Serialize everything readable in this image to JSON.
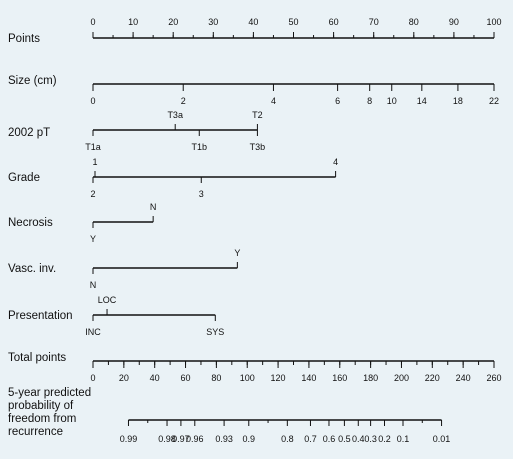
{
  "chart_data": {
    "type": "nomogram",
    "title": "",
    "scales": [
      {
        "id": "points",
        "label": "Points",
        "tick_side": "above",
        "ticks": [
          {
            "v": 0,
            "t": "0"
          },
          {
            "v": 10,
            "t": "10"
          },
          {
            "v": 20,
            "t": "20"
          },
          {
            "v": 30,
            "t": "30"
          },
          {
            "v": 40,
            "t": "40"
          },
          {
            "v": 50,
            "t": "50"
          },
          {
            "v": 60,
            "t": "60"
          },
          {
            "v": 70,
            "t": "70"
          },
          {
            "v": 80,
            "t": "80"
          },
          {
            "v": 90,
            "t": "90"
          },
          {
            "v": 100,
            "t": "100"
          }
        ],
        "minor_step": 5,
        "range": [
          0,
          100
        ]
      },
      {
        "id": "size",
        "label": "Size (cm)",
        "tick_side": "below",
        "ticks": [
          {
            "v": 0,
            "t": "0"
          },
          {
            "v": 22.5,
            "t": "2"
          },
          {
            "v": 45,
            "t": "4"
          },
          {
            "v": 61,
            "t": "6"
          },
          {
            "v": 69,
            "t": "8"
          },
          {
            "v": 74.5,
            "t": "10"
          },
          {
            "v": 82,
            "t": "14"
          },
          {
            "v": 91,
            "t": "18"
          },
          {
            "v": 100,
            "t": "22"
          }
        ],
        "range": [
          0,
          100
        ]
      },
      {
        "id": "pt2002",
        "label": "2002 pT",
        "categories": [
          {
            "v": 0,
            "t": "T1a",
            "side": "below"
          },
          {
            "v": 20.5,
            "t": "T3a",
            "side": "above"
          },
          {
            "v": 26.5,
            "t": "T1b",
            "side": "below"
          },
          {
            "v": 41,
            "t": "T2",
            "side": "above"
          },
          {
            "v": 41,
            "t": "T3b",
            "side": "below"
          }
        ],
        "range": [
          0,
          41
        ]
      },
      {
        "id": "grade",
        "label": "Grade",
        "categories": [
          {
            "v": 0.5,
            "t": "1",
            "side": "above"
          },
          {
            "v": 0,
            "t": "2",
            "side": "below"
          },
          {
            "v": 27,
            "t": "3",
            "side": "below"
          },
          {
            "v": 60.5,
            "t": "4",
            "side": "above"
          }
        ],
        "range": [
          0,
          60.5
        ]
      },
      {
        "id": "necrosis",
        "label": "Necrosis",
        "categories": [
          {
            "v": 0,
            "t": "Y",
            "side": "below"
          },
          {
            "v": 15,
            "t": "N",
            "side": "above"
          }
        ],
        "range": [
          0,
          15
        ]
      },
      {
        "id": "vasc",
        "label": "Vasc. inv.",
        "categories": [
          {
            "v": 0,
            "t": "N",
            "side": "below"
          },
          {
            "v": 36,
            "t": "Y",
            "side": "above"
          }
        ],
        "range": [
          0,
          36
        ]
      },
      {
        "id": "presentation",
        "label": "Presentation",
        "categories": [
          {
            "v": 0,
            "t": "INC",
            "side": "below"
          },
          {
            "v": 3.5,
            "t": "LOC",
            "side": "above"
          },
          {
            "v": 30.5,
            "t": "SYS",
            "side": "below"
          }
        ],
        "range": [
          0,
          30.5
        ]
      },
      {
        "id": "total",
        "label": "Total points",
        "tick_side": "below",
        "ticks": [
          {
            "v": 0,
            "t": "0"
          },
          {
            "v": 20,
            "t": "20"
          },
          {
            "v": 40,
            "t": "40"
          },
          {
            "v": 60,
            "t": "60"
          },
          {
            "v": 80,
            "t": "80"
          },
          {
            "v": 100,
            "t": "100"
          },
          {
            "v": 120,
            "t": "120"
          },
          {
            "v": 140,
            "t": "140"
          },
          {
            "v": 160,
            "t": "160"
          },
          {
            "v": 180,
            "t": "180"
          },
          {
            "v": 200,
            "t": "200"
          },
          {
            "v": 220,
            "t": "220"
          },
          {
            "v": 240,
            "t": "240"
          },
          {
            "v": 260,
            "t": "260"
          }
        ],
        "minor_step": 10,
        "range": [
          0,
          260
        ]
      },
      {
        "id": "prob",
        "label": "5-year predicted probability of freedom from recurrence",
        "label_lines": [
          "5-year predicted",
          "probability of",
          "freedom from",
          "recurrence"
        ],
        "tick_side": "below",
        "ticks": [
          {
            "v": 23,
            "t": "0.99"
          },
          {
            "v": 48,
            "t": "0.98"
          },
          {
            "v": 57,
            "t": "0.97"
          },
          {
            "v": 66,
            "t": "0.96"
          },
          {
            "v": 85,
            "t": "0.93"
          },
          {
            "v": 101,
            "t": "0.9"
          },
          {
            "v": 126,
            "t": "0.8"
          },
          {
            "v": 141,
            "t": "0.7"
          },
          {
            "v": 153,
            "t": "0.6"
          },
          {
            "v": 163,
            "t": "0.5"
          },
          {
            "v": 172,
            "t": "0.4"
          },
          {
            "v": 180,
            "t": "0.3"
          },
          {
            "v": 189,
            "t": "0.2"
          },
          {
            "v": 201,
            "t": "0.1"
          },
          {
            "v": 226,
            "t": "0.01"
          }
        ],
        "range": [
          23,
          226
        ]
      }
    ]
  }
}
